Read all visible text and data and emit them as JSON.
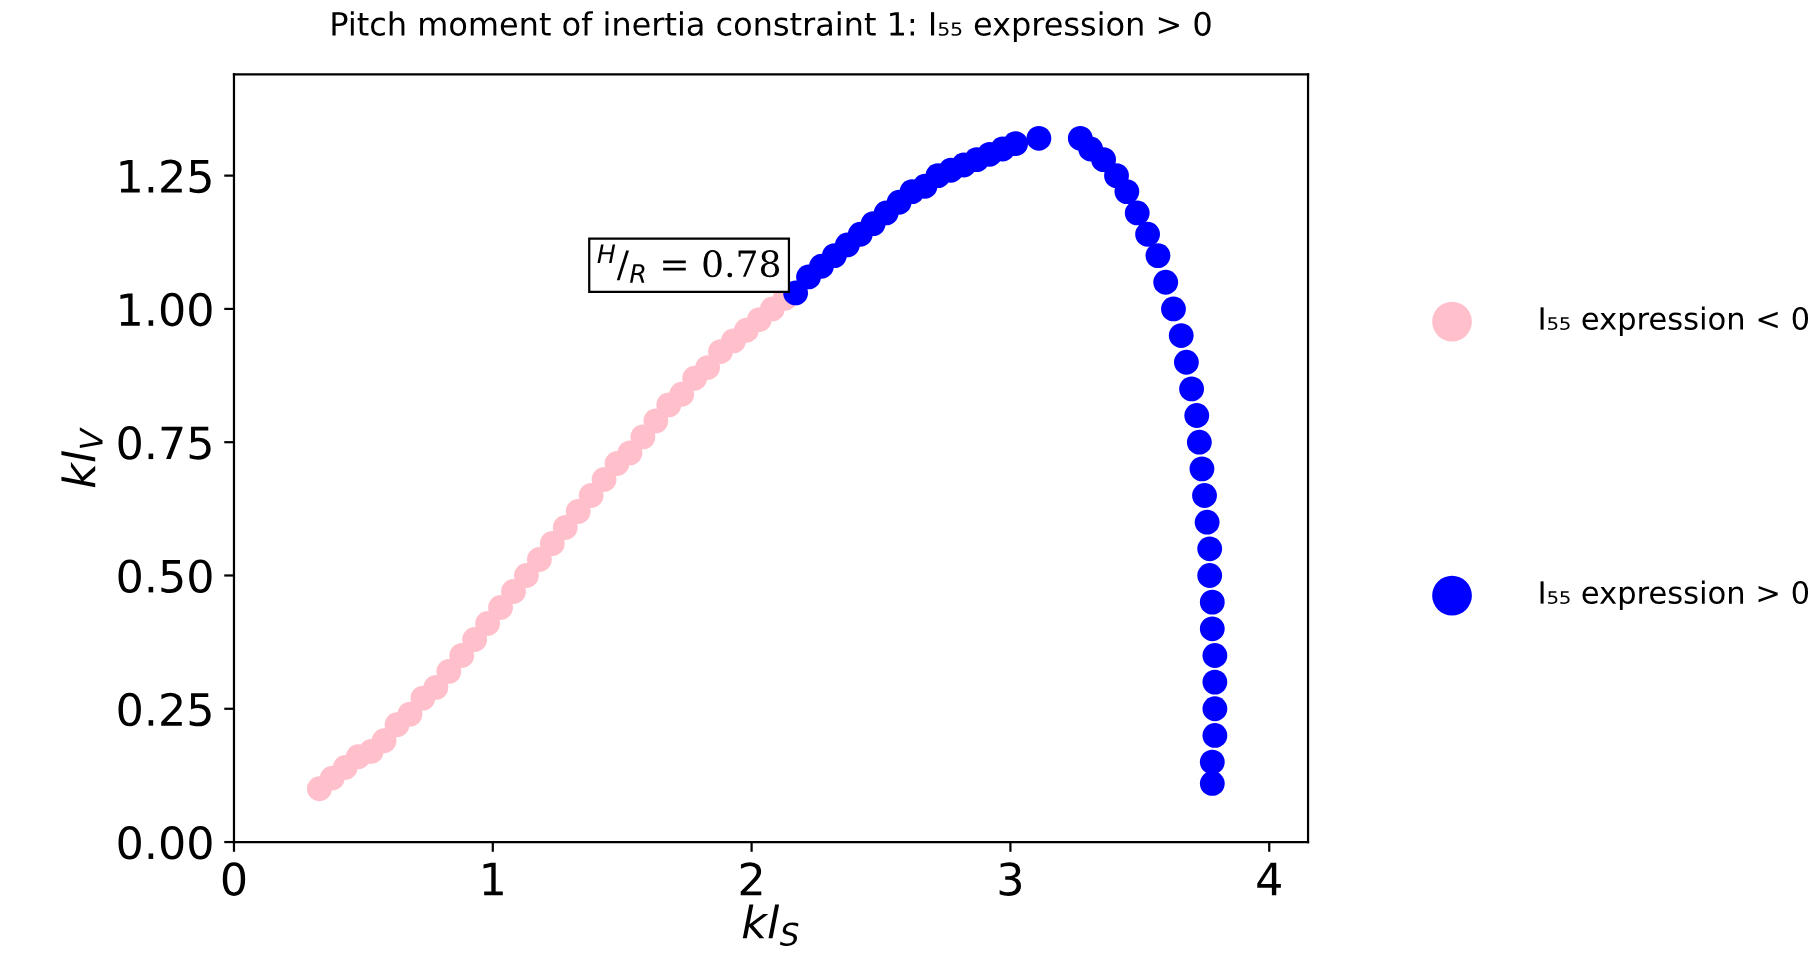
{
  "chart_data": {
    "type": "scatter",
    "title": "Pitch moment of inertia constraint 1: I₅₅ expression > 0",
    "xlabel": "kl$_{S}$",
    "ylabel": "kl$_{V}$",
    "series": [
      {
        "name": "I₅₅ expression < 0",
        "color": "#ffc0cb",
        "x": [
          0.33,
          0.38,
          0.43,
          0.48,
          0.53,
          0.58,
          0.63,
          0.68,
          0.73,
          0.78,
          0.83,
          0.88,
          0.93,
          0.98,
          1.03,
          1.08,
          1.13,
          1.18,
          1.23,
          1.28,
          1.33,
          1.38,
          1.43,
          1.48,
          1.53,
          1.58,
          1.63,
          1.68,
          1.73,
          1.78,
          1.83,
          1.88,
          1.93,
          1.98,
          2.03,
          2.08,
          2.13
        ],
        "values": [
          0.1,
          0.12,
          0.14,
          0.16,
          0.17,
          0.19,
          0.22,
          0.24,
          0.27,
          0.29,
          0.32,
          0.35,
          0.38,
          0.41,
          0.44,
          0.47,
          0.5,
          0.53,
          0.56,
          0.59,
          0.62,
          0.65,
          0.68,
          0.71,
          0.73,
          0.76,
          0.79,
          0.82,
          0.84,
          0.87,
          0.89,
          0.92,
          0.94,
          0.96,
          0.98,
          1.0,
          1.02
        ]
      },
      {
        "name": "I₅₅ expression > 0",
        "color": "#0000ff",
        "x": [
          2.17,
          2.22,
          2.27,
          2.32,
          2.37,
          2.42,
          2.47,
          2.52,
          2.57,
          2.62,
          2.67,
          2.72,
          2.77,
          2.82,
          2.87,
          2.92,
          2.97,
          3.02,
          3.11,
          3.27,
          3.31,
          3.36,
          3.41,
          3.45,
          3.49,
          3.53,
          3.57,
          3.6,
          3.63,
          3.66,
          3.68,
          3.7,
          3.72,
          3.73,
          3.74,
          3.75,
          3.76,
          3.77,
          3.77,
          3.78,
          3.78,
          3.79,
          3.79,
          3.79,
          3.79,
          3.78,
          3.78
        ],
        "values": [
          1.03,
          1.06,
          1.08,
          1.1,
          1.12,
          1.14,
          1.16,
          1.18,
          1.2,
          1.22,
          1.23,
          1.25,
          1.26,
          1.27,
          1.28,
          1.29,
          1.3,
          1.31,
          1.32,
          1.32,
          1.3,
          1.28,
          1.25,
          1.22,
          1.18,
          1.14,
          1.1,
          1.05,
          1.0,
          0.95,
          0.9,
          0.85,
          0.8,
          0.75,
          0.7,
          0.65,
          0.6,
          0.55,
          0.5,
          0.45,
          0.4,
          0.35,
          0.3,
          0.25,
          0.2,
          0.15,
          0.11
        ]
      }
    ],
    "xlim": [
      0,
      4.15
    ],
    "ylim": [
      0,
      1.44
    ],
    "xticks": [
      0,
      1,
      2,
      3,
      4
    ],
    "yticks": [
      {
        "value": 0,
        "label": "0.00"
      },
      {
        "value": 0.25,
        "label": "0.25"
      },
      {
        "value": 0.5,
        "label": "0.50"
      },
      {
        "value": 0.75,
        "label": "0.75"
      },
      {
        "value": 1.0,
        "label": "1.00"
      },
      {
        "value": 1.25,
        "label": "1.25"
      }
    ],
    "legend": "right",
    "marker": "circle",
    "annotations": [
      {
        "text": "$^{H}$/$_{R}$ = 0.78",
        "x": 2.17,
        "y": 1.03
      }
    ]
  }
}
